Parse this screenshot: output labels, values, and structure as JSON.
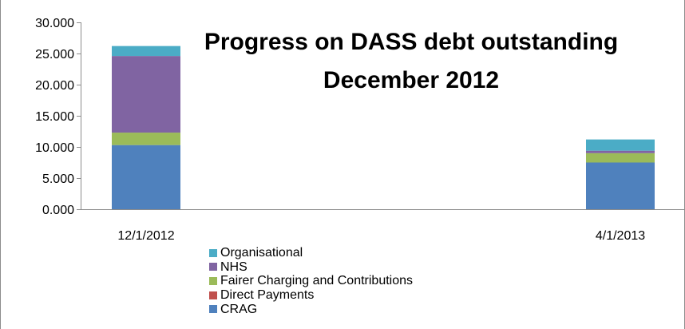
{
  "chart_data": {
    "type": "bar",
    "stacked": true,
    "title_lines": [
      "Progress on DASS debt outstanding",
      "December 2012"
    ],
    "categories": [
      "12/1/2012",
      "4/1/2013"
    ],
    "ylim": [
      0,
      30
    ],
    "yticks": [
      "0.000",
      "5.000",
      "10.000",
      "15.000",
      "20.000",
      "25.000",
      "30.000"
    ],
    "ytick_values": [
      0,
      5,
      10,
      15,
      20,
      25,
      30
    ],
    "grid": false,
    "legend_position": "bottom",
    "series": [
      {
        "name": "CRAG",
        "color": "#4F81BD",
        "values": [
          10.3,
          7.5
        ]
      },
      {
        "name": "Direct Payments",
        "color": "#C0504D",
        "values": [
          0.0,
          0.0
        ]
      },
      {
        "name": "Fairer Charging and Contributions",
        "color": "#9BBB59",
        "values": [
          2.0,
          1.5
        ]
      },
      {
        "name": "NHS",
        "color": "#8064A2",
        "values": [
          12.3,
          0.4
        ]
      },
      {
        "name": "Organisational",
        "color": "#4BACC6",
        "values": [
          1.6,
          1.8
        ]
      }
    ]
  },
  "legend": {
    "items": [
      {
        "label": "Organisational",
        "color": "#4BACC6"
      },
      {
        "label": "NHS",
        "color": "#8064A2"
      },
      {
        "label": "Fairer Charging and Contributions",
        "color": "#9BBB59"
      },
      {
        "label": "Direct Payments",
        "color": "#C0504D"
      },
      {
        "label": "CRAG",
        "color": "#4F81BD"
      }
    ]
  }
}
